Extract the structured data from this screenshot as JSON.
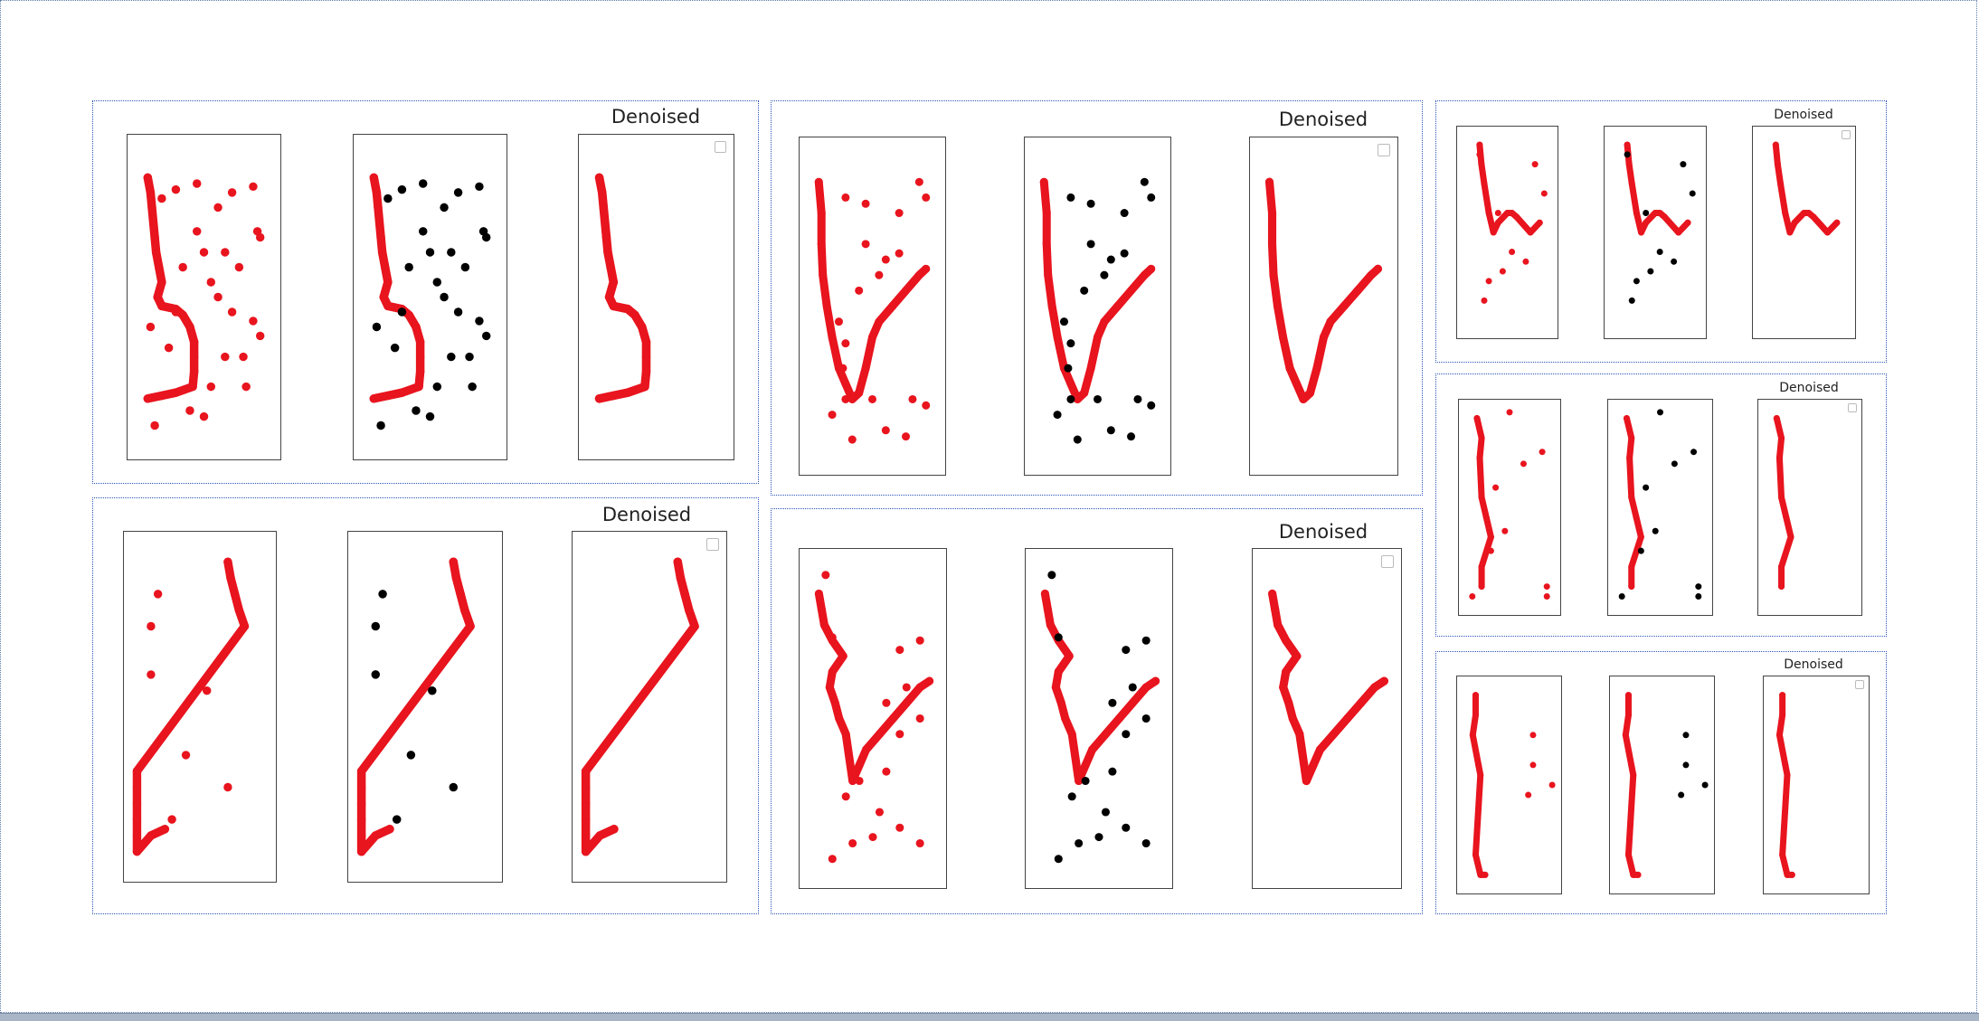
{
  "figure": {
    "panel_title": "Denoised"
  },
  "colors": {
    "signal": "#e8141e",
    "noise": "#000000",
    "panel_border": "#2a55b8"
  },
  "chart_data": [
    {
      "type": "scatter",
      "panel": "p1",
      "series": [
        {
          "role": "signal",
          "points": [
            [
              0.1,
              0.9
            ],
            [
              0.12,
              0.85
            ],
            [
              0.13,
              0.8
            ],
            [
              0.15,
              0.7
            ],
            [
              0.16,
              0.65
            ],
            [
              0.18,
              0.6
            ],
            [
              0.2,
              0.55
            ],
            [
              0.17,
              0.5
            ],
            [
              0.2,
              0.47
            ],
            [
              0.3,
              0.46
            ],
            [
              0.35,
              0.44
            ],
            [
              0.4,
              0.4
            ],
            [
              0.43,
              0.35
            ],
            [
              0.43,
              0.3
            ],
            [
              0.43,
              0.25
            ],
            [
              0.42,
              0.2
            ],
            [
              0.3,
              0.18
            ],
            [
              0.2,
              0.17
            ],
            [
              0.1,
              0.16
            ]
          ]
        },
        {
          "role": "noise",
          "points": [
            [
              0.2,
              0.83
            ],
            [
              0.3,
              0.86
            ],
            [
              0.45,
              0.88
            ],
            [
              0.6,
              0.8
            ],
            [
              0.7,
              0.85
            ],
            [
              0.85,
              0.87
            ],
            [
              0.9,
              0.7
            ],
            [
              0.88,
              0.72
            ],
            [
              0.65,
              0.65
            ],
            [
              0.75,
              0.6
            ],
            [
              0.55,
              0.55
            ],
            [
              0.6,
              0.5
            ],
            [
              0.7,
              0.45
            ],
            [
              0.85,
              0.42
            ],
            [
              0.9,
              0.37
            ],
            [
              0.65,
              0.3
            ],
            [
              0.78,
              0.3
            ],
            [
              0.55,
              0.2
            ],
            [
              0.8,
              0.2
            ],
            [
              0.4,
              0.12
            ],
            [
              0.5,
              0.1
            ],
            [
              0.15,
              0.07
            ],
            [
              0.3,
              0.45
            ],
            [
              0.45,
              0.72
            ],
            [
              0.5,
              0.65
            ],
            [
              0.35,
              0.6
            ],
            [
              0.25,
              0.33
            ],
            [
              0.12,
              0.4
            ]
          ]
        }
      ]
    },
    {
      "type": "scatter",
      "panel": "p2",
      "series": [
        {
          "role": "signal",
          "points": [
            [
              0.1,
              0.9
            ],
            [
              0.12,
              0.8
            ],
            [
              0.12,
              0.7
            ],
            [
              0.13,
              0.6
            ],
            [
              0.16,
              0.5
            ],
            [
              0.2,
              0.4
            ],
            [
              0.25,
              0.3
            ],
            [
              0.3,
              0.25
            ],
            [
              0.35,
              0.2
            ],
            [
              0.4,
              0.22
            ],
            [
              0.45,
              0.3
            ],
            [
              0.5,
              0.4
            ],
            [
              0.55,
              0.45
            ],
            [
              0.65,
              0.5
            ],
            [
              0.75,
              0.55
            ],
            [
              0.85,
              0.6
            ],
            [
              0.9,
              0.62
            ]
          ]
        },
        {
          "role": "noise",
          "points": [
            [
              0.3,
              0.85
            ],
            [
              0.45,
              0.83
            ],
            [
              0.7,
              0.8
            ],
            [
              0.85,
              0.9
            ],
            [
              0.9,
              0.85
            ],
            [
              0.45,
              0.7
            ],
            [
              0.6,
              0.65
            ],
            [
              0.7,
              0.67
            ],
            [
              0.55,
              0.6
            ],
            [
              0.4,
              0.55
            ],
            [
              0.25,
              0.45
            ],
            [
              0.3,
              0.38
            ],
            [
              0.28,
              0.3
            ],
            [
              0.3,
              0.2
            ],
            [
              0.8,
              0.2
            ],
            [
              0.9,
              0.18
            ],
            [
              0.6,
              0.1
            ],
            [
              0.75,
              0.08
            ],
            [
              0.35,
              0.07
            ],
            [
              0.5,
              0.2
            ],
            [
              0.2,
              0.15
            ]
          ]
        }
      ]
    },
    {
      "type": "scatter",
      "panel": "p3",
      "series": [
        {
          "role": "signal",
          "points": [
            [
              0.1,
              0.9
            ],
            [
              0.12,
              0.85
            ],
            [
              0.14,
              0.8
            ],
            [
              0.2,
              0.75
            ],
            [
              0.28,
              0.7
            ],
            [
              0.2,
              0.65
            ],
            [
              0.18,
              0.6
            ],
            [
              0.22,
              0.55
            ],
            [
              0.25,
              0.5
            ],
            [
              0.3,
              0.45
            ],
            [
              0.35,
              0.3
            ],
            [
              0.4,
              0.35
            ],
            [
              0.45,
              0.4
            ],
            [
              0.55,
              0.45
            ],
            [
              0.65,
              0.5
            ],
            [
              0.75,
              0.55
            ],
            [
              0.85,
              0.6
            ],
            [
              0.92,
              0.62
            ]
          ]
        },
        {
          "role": "noise",
          "points": [
            [
              0.15,
              0.96
            ],
            [
              0.2,
              0.76
            ],
            [
              0.7,
              0.72
            ],
            [
              0.85,
              0.75
            ],
            [
              0.75,
              0.6
            ],
            [
              0.6,
              0.55
            ],
            [
              0.7,
              0.45
            ],
            [
              0.85,
              0.5
            ],
            [
              0.6,
              0.33
            ],
            [
              0.3,
              0.25
            ],
            [
              0.4,
              0.3
            ],
            [
              0.55,
              0.2
            ],
            [
              0.7,
              0.15
            ],
            [
              0.85,
              0.1
            ],
            [
              0.5,
              0.12
            ],
            [
              0.2,
              0.05
            ],
            [
              0.35,
              0.1
            ]
          ]
        }
      ]
    },
    {
      "type": "scatter",
      "panel": "p4",
      "series": [
        {
          "role": "signal",
          "points": [
            [
              0.7,
              0.95
            ],
            [
              0.72,
              0.9
            ],
            [
              0.75,
              0.85
            ],
            [
              0.78,
              0.8
            ],
            [
              0.82,
              0.75
            ],
            [
              0.05,
              0.3
            ],
            [
              0.05,
              0.25
            ],
            [
              0.05,
              0.2
            ],
            [
              0.05,
              0.15
            ],
            [
              0.05,
              0.1
            ],
            [
              0.05,
              0.05
            ],
            [
              0.15,
              0.1
            ],
            [
              0.25,
              0.12
            ]
          ]
        },
        {
          "role": "noise",
          "points": [
            [
              0.2,
              0.85
            ],
            [
              0.15,
              0.75
            ],
            [
              0.15,
              0.6
            ],
            [
              0.55,
              0.55
            ],
            [
              0.4,
              0.35
            ],
            [
              0.7,
              0.25
            ],
            [
              0.3,
              0.15
            ]
          ]
        }
      ]
    },
    {
      "type": "scatter",
      "panel": "p5",
      "series": [
        {
          "role": "signal",
          "points": [
            [
              0.2,
              0.95
            ],
            [
              0.22,
              0.85
            ],
            [
              0.25,
              0.75
            ],
            [
              0.3,
              0.6
            ],
            [
              0.35,
              0.5
            ],
            [
              0.4,
              0.55
            ],
            [
              0.5,
              0.6
            ],
            [
              0.55,
              0.6
            ],
            [
              0.6,
              0.58
            ],
            [
              0.75,
              0.5
            ],
            [
              0.85,
              0.55
            ]
          ]
        },
        {
          "role": "noise",
          "points": [
            [
              0.2,
              0.9
            ],
            [
              0.4,
              0.6
            ],
            [
              0.8,
              0.85
            ],
            [
              0.9,
              0.7
            ],
            [
              0.45,
              0.3
            ],
            [
              0.55,
              0.4
            ],
            [
              0.7,
              0.35
            ],
            [
              0.3,
              0.25
            ],
            [
              0.25,
              0.15
            ]
          ]
        }
      ]
    },
    {
      "type": "scatter",
      "panel": "p6",
      "series": [
        {
          "role": "signal",
          "points": [
            [
              0.15,
              0.95
            ],
            [
              0.2,
              0.85
            ],
            [
              0.18,
              0.75
            ],
            [
              0.2,
              0.55
            ],
            [
              0.25,
              0.45
            ],
            [
              0.3,
              0.35
            ],
            [
              0.2,
              0.2
            ],
            [
              0.2,
              0.1
            ]
          ]
        },
        {
          "role": "noise",
          "points": [
            [
              0.5,
              0.98
            ],
            [
              0.85,
              0.78
            ],
            [
              0.65,
              0.72
            ],
            [
              0.35,
              0.6
            ],
            [
              0.45,
              0.38
            ],
            [
              0.3,
              0.28
            ],
            [
              0.9,
              0.1
            ],
            [
              0.1,
              0.05
            ],
            [
              0.9,
              0.05
            ]
          ]
        }
      ]
    },
    {
      "type": "scatter",
      "panel": "p7",
      "series": [
        {
          "role": "signal",
          "points": [
            [
              0.15,
              0.95
            ],
            [
              0.15,
              0.85
            ],
            [
              0.12,
              0.75
            ],
            [
              0.18,
              0.6
            ],
            [
              0.2,
              0.55
            ],
            [
              0.15,
              0.15
            ],
            [
              0.2,
              0.05
            ],
            [
              0.25,
              0.05
            ]
          ]
        },
        {
          "role": "noise",
          "points": [
            [
              0.75,
              0.75
            ],
            [
              0.75,
              0.6
            ],
            [
              0.7,
              0.45
            ],
            [
              0.95,
              0.5
            ]
          ]
        }
      ]
    }
  ]
}
